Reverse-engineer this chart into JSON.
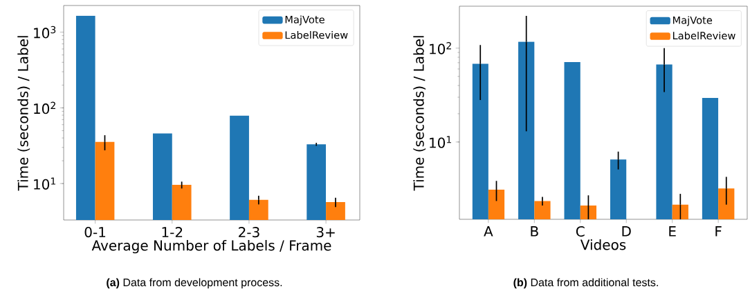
{
  "chart_data": [
    {
      "type": "bar",
      "xlabel": "Average Number of Labels / Frame",
      "ylabel": "Time (seconds) / Label",
      "log": true,
      "legend": "top right",
      "categories": [
        "0-1",
        "1-2",
        "2-3",
        "3+"
      ],
      "ylim": [
        3.3,
        2250
      ],
      "yticks": [
        {
          "value": 10,
          "label": "10$^{1}$"
        },
        {
          "value": 100,
          "label": "10$^{2}$"
        },
        {
          "value": 1000,
          "label": "10$^{3}$"
        }
      ],
      "series": [
        {
          "name": "MajVote",
          "color": "#1f77b4",
          "values": [
            1650,
            46,
            79,
            33
          ],
          "errors": [
            null,
            null,
            null,
            1.5
          ]
        },
        {
          "name": "LabelReview",
          "color": "#ff7f0e",
          "values": [
            35.5,
            9.6,
            6.1,
            5.7
          ],
          "errors": [
            8,
            1,
            0.8,
            0.8
          ]
        }
      ],
      "annotations": [
        "**(a)** Data from development process."
      ]
    },
    {
      "type": "bar",
      "xlabel": "Videos",
      "ylabel": "Time (seconds) / Label",
      "log": true,
      "legend": "top right",
      "categories": [
        "A",
        "B",
        "C",
        "D",
        "E",
        "F"
      ],
      "ylim": [
        1.5,
        280
      ],
      "yticks": [
        {
          "value": 10,
          "label": "10$^{1}$"
        },
        {
          "value": 100,
          "label": "10$^{2}$"
        }
      ],
      "series": [
        {
          "name": "MajVote",
          "color": "#1f77b4",
          "values": [
            68,
            117,
            71,
            6.5,
            67,
            29.5
          ],
          "errors": [
            40,
            104,
            null,
            1.4,
            33,
            null
          ]
        },
        {
          "name": "LabelReview",
          "color": "#ff7f0e",
          "values": [
            3.1,
            2.35,
            2.1,
            null,
            2.15,
            3.2
          ],
          "errors": [
            0.75,
            0.25,
            0.6,
            null,
            0.65,
            1.05
          ]
        }
      ],
      "annotations": [
        "**(b)** Data from additional tests."
      ]
    }
  ]
}
